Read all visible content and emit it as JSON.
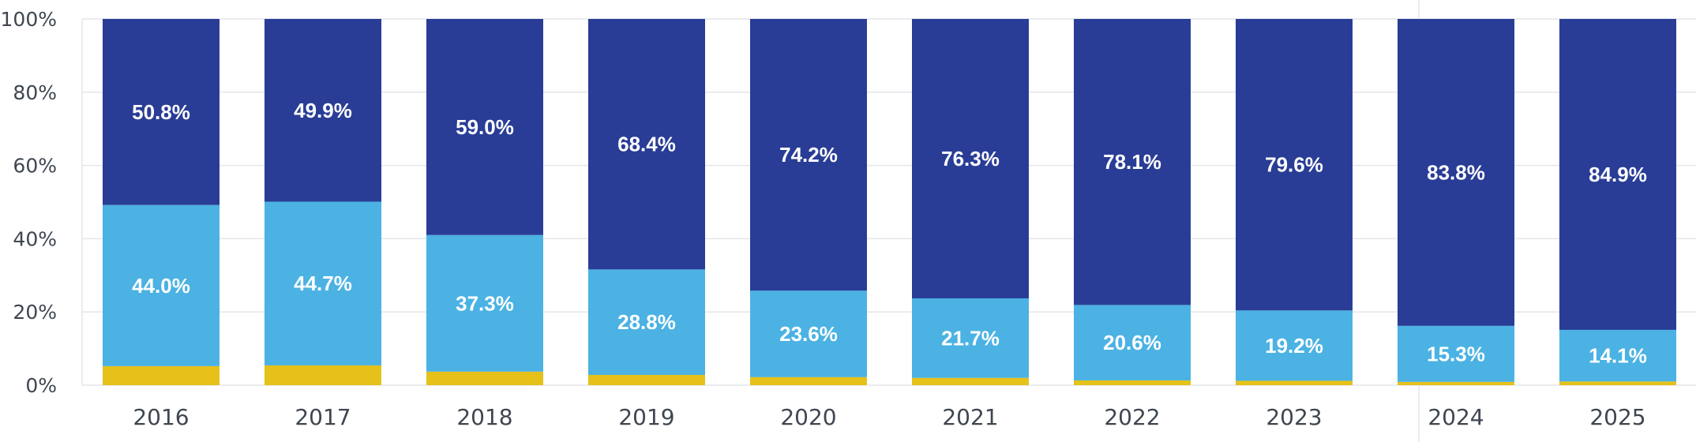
{
  "colors": {
    "series_bottom": "#e5c11a",
    "series_middle": "#4bb2e3",
    "series_top": "#293d96",
    "grid": "#e3e6ea",
    "label_text": "#ffffff",
    "axis_text": "#3f4650"
  },
  "chart_data": {
    "type": "bar",
    "stacked": true,
    "percent_stacked": true,
    "title": "",
    "xlabel": "",
    "ylabel": "",
    "ylim": [
      0,
      100
    ],
    "y_ticks": [
      "0%",
      "20%",
      "40%",
      "60%",
      "80%",
      "100%"
    ],
    "y_tick_values": [
      0,
      20,
      40,
      60,
      80,
      100
    ],
    "grid": true,
    "legend": "none",
    "categories": [
      "2016",
      "2017",
      "2018",
      "2019",
      "2020",
      "2021",
      "2022",
      "2023",
      "2024",
      "2025"
    ],
    "series": [
      {
        "values": [
          5.2,
          5.4,
          3.7,
          2.8,
          2.2,
          2.0,
          1.3,
          1.2,
          0.9,
          1.0
        ],
        "color": "#e5c11a",
        "labels": [
          "",
          "",
          "",
          "",
          "",
          "",
          "",
          "",
          "",
          ""
        ]
      },
      {
        "values": [
          44.0,
          44.7,
          37.3,
          28.8,
          23.6,
          21.7,
          20.6,
          19.2,
          15.3,
          14.1
        ],
        "color": "#4bb2e3",
        "labels": [
          "44.0%",
          "44.7%",
          "37.3%",
          "28.8%",
          "23.6%",
          "21.7%",
          "20.6%",
          "19.2%",
          "15.3%",
          "14.1%"
        ]
      },
      {
        "values": [
          50.8,
          49.9,
          59.0,
          68.4,
          74.2,
          76.3,
          78.1,
          79.6,
          83.8,
          84.9
        ],
        "color": "#293d96",
        "labels": [
          "50.8%",
          "49.9%",
          "59.0%",
          "68.4%",
          "74.2%",
          "76.3%",
          "78.1%",
          "79.6%",
          "83.8%",
          "84.9%"
        ]
      }
    ]
  }
}
